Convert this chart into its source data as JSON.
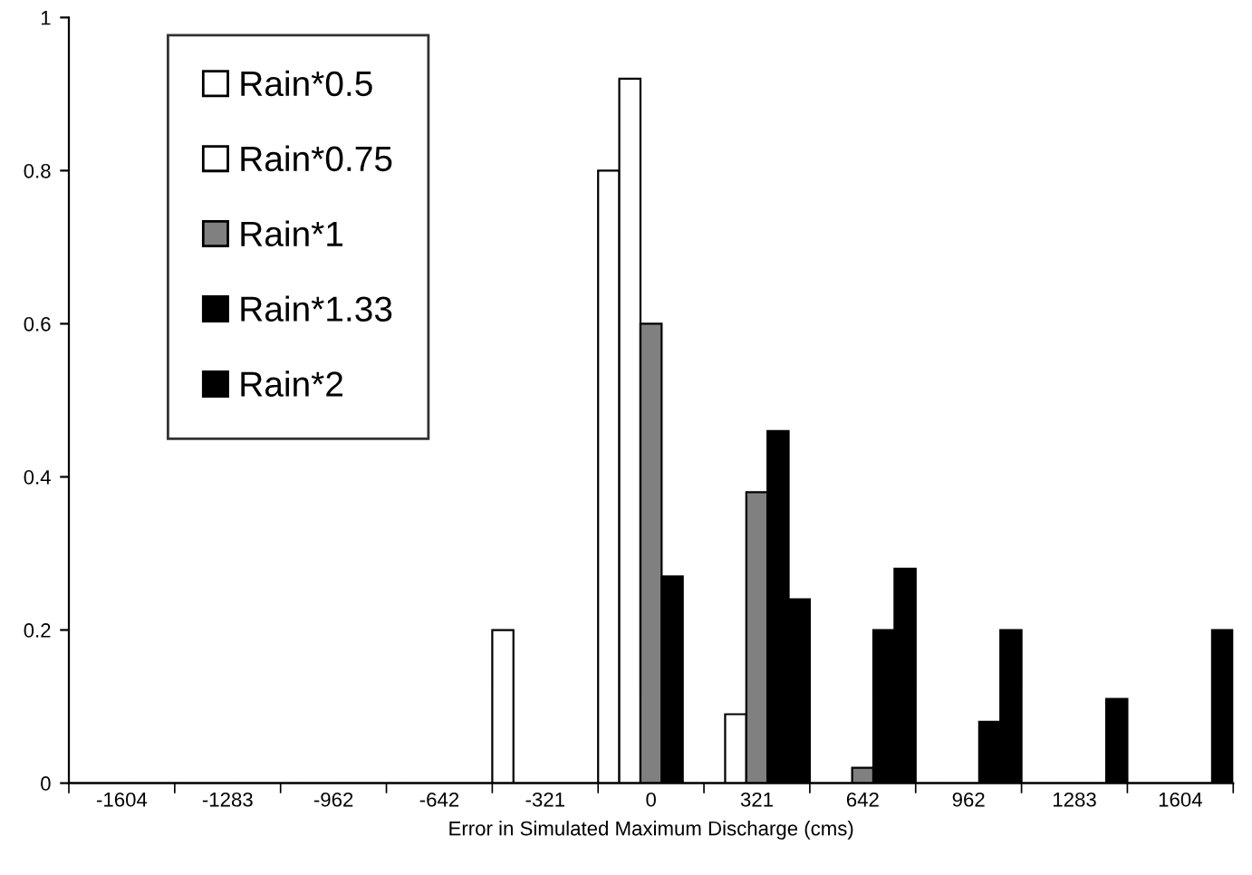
{
  "chart_data": {
    "type": "bar",
    "xlabel": "Error in Simulated Maximum Discharge (cms)",
    "categories": [
      "-1604",
      "-1283",
      "-962",
      "-642",
      "-321",
      "0",
      "321",
      "642",
      "962",
      "1283",
      "1604"
    ],
    "series": [
      {
        "name": "Rain*0.5",
        "color": "#ffffff",
        "values": [
          0,
          0,
          0,
          0,
          0.2,
          0.8,
          0,
          0,
          0,
          0,
          0
        ]
      },
      {
        "name": "Rain*0.75",
        "color": "#ffffff",
        "values": [
          0,
          0,
          0,
          0,
          0,
          0.92,
          0.09,
          0,
          0,
          0,
          0
        ]
      },
      {
        "name": "Rain*1",
        "color": "#808080",
        "values": [
          0,
          0,
          0,
          0,
          0,
          0.6,
          0.38,
          0.02,
          0,
          0,
          0
        ]
      },
      {
        "name": "Rain*1.33",
        "color": "#000000",
        "values": [
          0,
          0,
          0,
          0,
          0,
          0.27,
          0.46,
          0.2,
          0.08,
          0,
          0
        ]
      },
      {
        "name": "Rain*2",
        "color": "#000000",
        "values": [
          0,
          0,
          0,
          0,
          0,
          0,
          0.24,
          0.28,
          0.2,
          0.11,
          0.2
        ]
      }
    ],
    "ylim": [
      0,
      1
    ],
    "yticks": [
      0,
      0.2,
      0.4,
      0.6,
      0.8,
      1
    ],
    "grid": false,
    "legend": "top left"
  }
}
